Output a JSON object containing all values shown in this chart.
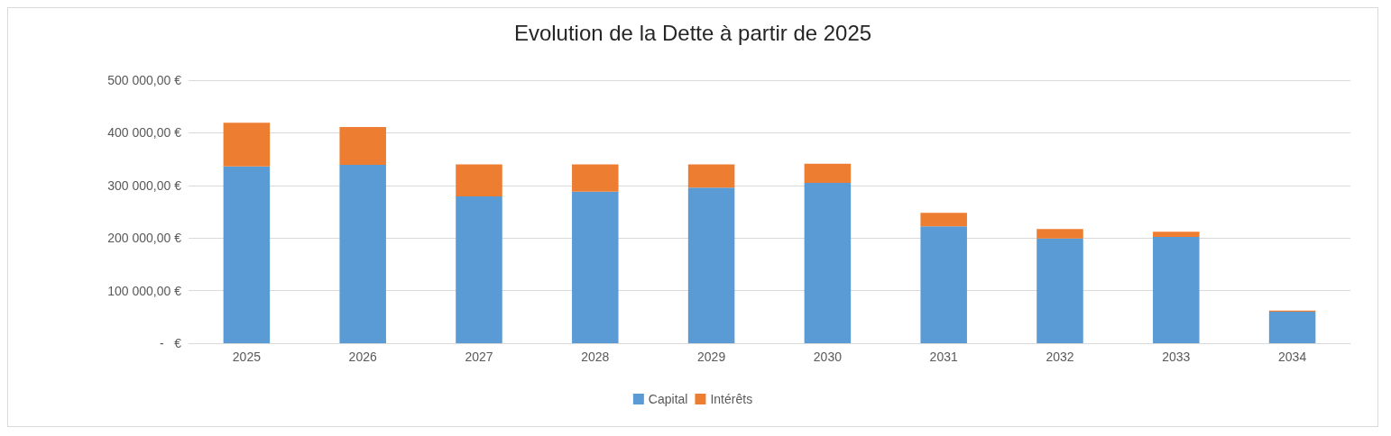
{
  "chart_data": {
    "type": "bar",
    "title": "Evolution de la Dette à partir de 2025",
    "categories": [
      "2025",
      "2026",
      "2027",
      "2028",
      "2029",
      "2030",
      "2031",
      "2032",
      "2033",
      "2034"
    ],
    "stacked": true,
    "series": [
      {
        "name": "Capital",
        "color": "#5b9bd5",
        "values": [
          336000,
          339000,
          279000,
          288000,
          296000,
          305000,
          222000,
          199000,
          202000,
          60000
        ]
      },
      {
        "name": "Intérêts",
        "color": "#ed7d31",
        "values": [
          83000,
          72000,
          61000,
          52000,
          44000,
          36000,
          26000,
          18000,
          10000,
          2000
        ]
      }
    ],
    "ylim": [
      0,
      500000
    ],
    "yticks": [
      {
        "value": 0,
        "label": "-   €"
      },
      {
        "value": 100000,
        "label": "100 000,00 €"
      },
      {
        "value": 200000,
        "label": "200 000,00 €"
      },
      {
        "value": 300000,
        "label": "300 000,00 €"
      },
      {
        "value": 400000,
        "label": "400 000,00 €"
      },
      {
        "value": 500000,
        "label": "500 000,00 €"
      }
    ],
    "grid": "y",
    "legend": "bottom"
  }
}
